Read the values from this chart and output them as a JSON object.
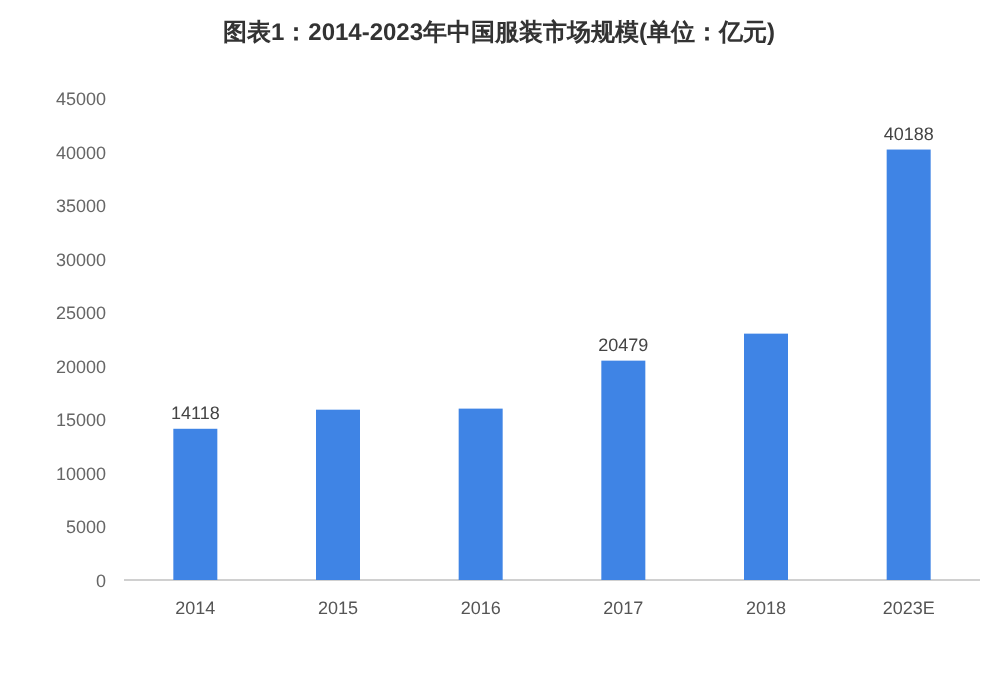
{
  "chart_data": {
    "type": "bar",
    "title": "图表1：2014-2023年中国服装市场规模(单位：亿元)",
    "categories": [
      "2014",
      "2015",
      "2016",
      "2017",
      "2018",
      "2023E"
    ],
    "values": [
      14118,
      15900,
      16000,
      20479,
      23000,
      40188
    ],
    "value_labels": [
      "14118",
      null,
      null,
      "20479",
      null,
      "40188"
    ],
    "color": "#3f84e5",
    "ylim": [
      0,
      45000
    ],
    "yticks": [
      0,
      5000,
      10000,
      15000,
      20000,
      25000,
      30000,
      35000,
      40000,
      45000
    ],
    "grid": false
  }
}
